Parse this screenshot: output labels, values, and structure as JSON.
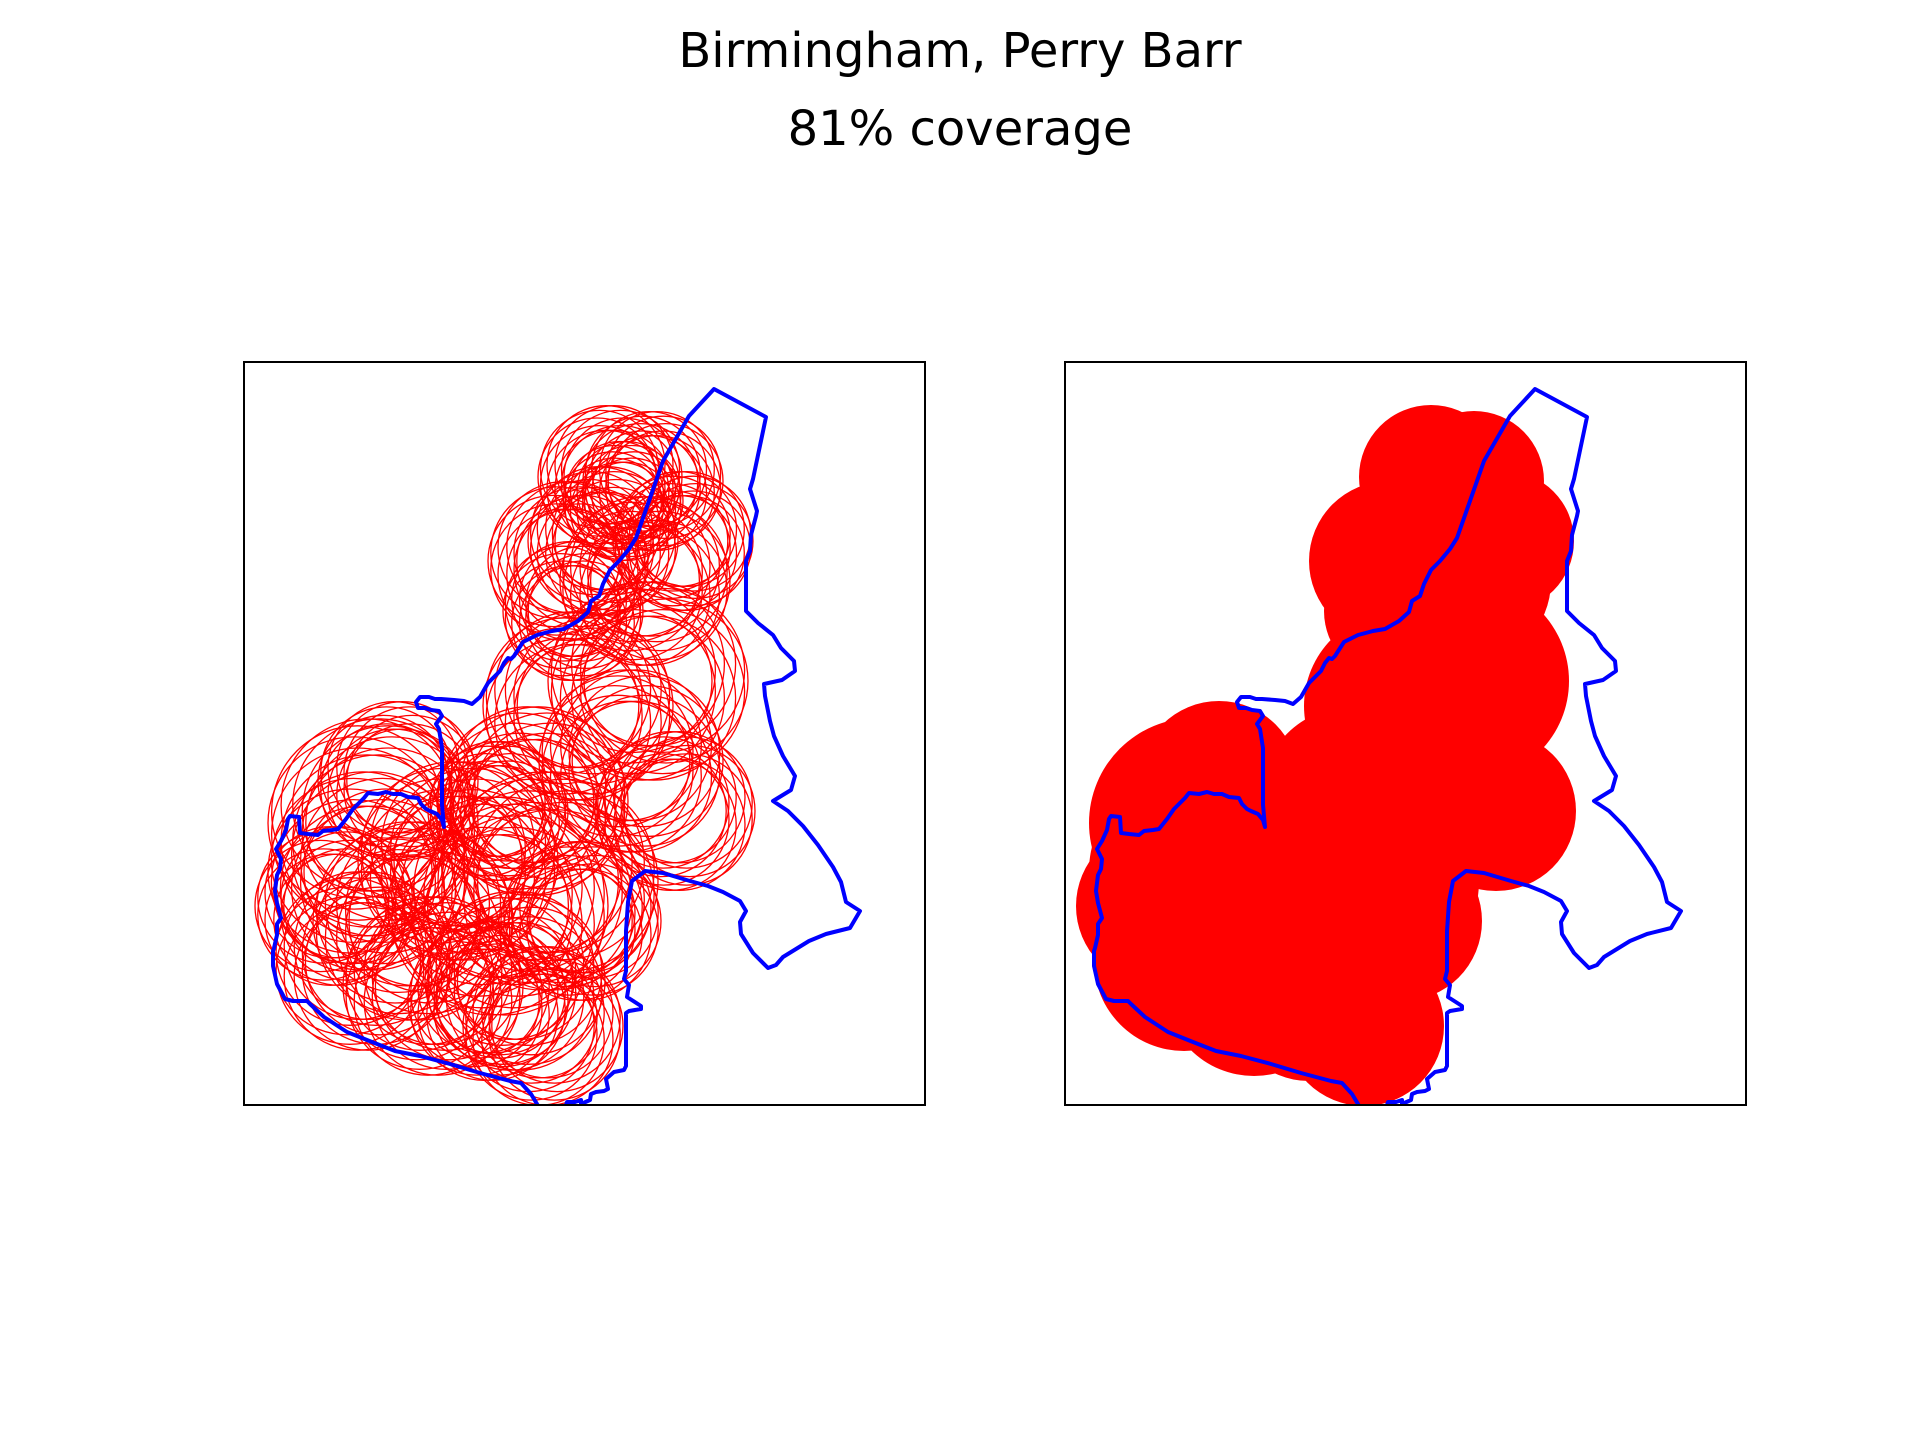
{
  "title": "Birmingham, Perry Barr",
  "subtitle": "81% coverage",
  "coverage_percent": 81,
  "colors": {
    "boundary": "#0000ff",
    "coverage": "#ff0000",
    "axes_frame": "#000000",
    "background": "#ffffff"
  },
  "chart_data": [
    {
      "type": "map",
      "panel": "left",
      "style": "coverage circles drawn as red outlines over constituency boundary (blue)",
      "grid": false,
      "ticks": false
    },
    {
      "type": "map",
      "panel": "right",
      "style": "coverage union drawn as solid red fill over constituency boundary (blue)",
      "grid": false,
      "ticks": false
    }
  ]
}
